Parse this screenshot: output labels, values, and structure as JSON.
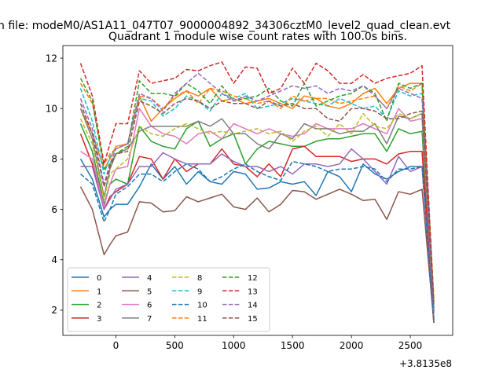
{
  "figure": {
    "suptitle": "n file: modeM0/AS1A11_047T07_9000004892_34306cztM0_level2_quad_clean.evt"
  },
  "chart_data": {
    "type": "line",
    "title": "Quadrant 1 module wise count rates with 100.0s bins.",
    "xlabel": "",
    "ylabel": "",
    "x_offset_label": "+3.8135e8",
    "xlim": [
      -450,
      2860
    ],
    "ylim": [
      1.0,
      12.5
    ],
    "xticks": [
      0,
      500,
      1000,
      1500,
      2000,
      2500
    ],
    "yticks": [
      2,
      4,
      6,
      8,
      10,
      12
    ],
    "grid": false,
    "legend": {
      "placement": "lower left",
      "columns": 4
    },
    "x": [
      -300,
      -200,
      -100,
      -50,
      0,
      100,
      200,
      300,
      400,
      500,
      600,
      700,
      800,
      900,
      1000,
      1100,
      1200,
      1300,
      1400,
      1500,
      1600,
      1700,
      1800,
      1900,
      2000,
      2100,
      2200,
      2300,
      2400,
      2500,
      2600,
      2700
    ],
    "series": [
      {
        "name": "0",
        "color": "#1f77b4",
        "dash": false,
        "values": [
          8.0,
          7.2,
          5.7,
          6.0,
          6.2,
          6.2,
          6.9,
          7.8,
          7.2,
          7.7,
          7.0,
          7.5,
          7.1,
          7.0,
          7.5,
          7.4,
          6.8,
          6.85,
          7.1,
          7.0,
          7.1,
          6.55,
          7.5,
          7.3,
          6.7,
          7.8,
          7.4,
          7.2,
          7.5,
          7.7,
          7.7,
          1.5
        ]
      },
      {
        "name": "1",
        "color": "#ff7f0e",
        "dash": false,
        "values": [
          10.0,
          9.0,
          7.6,
          8.0,
          8.5,
          8.6,
          10.5,
          9.5,
          10.0,
          10.4,
          10.7,
          10.5,
          10.8,
          10.3,
          10.4,
          10.2,
          10.3,
          10.4,
          10.2,
          10.0,
          10.5,
          10.4,
          10.1,
          10.0,
          10.2,
          10.6,
          10.8,
          10.2,
          10.8,
          11.0,
          11.0,
          2.0
        ]
      },
      {
        "name": "2",
        "color": "#2ca02c",
        "dash": false,
        "values": [
          9.4,
          8.3,
          6.2,
          7.0,
          7.2,
          7.0,
          9.3,
          8.7,
          8.5,
          8.4,
          9.2,
          9.5,
          8.5,
          8.8,
          9.0,
          7.8,
          8.4,
          8.7,
          8.6,
          8.5,
          8.5,
          8.7,
          8.8,
          8.8,
          8.9,
          9.0,
          9.0,
          8.3,
          9.2,
          9.0,
          9.1,
          1.6
        ]
      },
      {
        "name": "3",
        "color": "#d62728",
        "dash": false,
        "values": [
          9.0,
          7.8,
          6.0,
          6.5,
          6.7,
          7.0,
          8.1,
          8.0,
          7.2,
          8.0,
          7.5,
          7.8,
          7.8,
          8.4,
          7.8,
          7.7,
          7.3,
          7.8,
          7.3,
          8.4,
          8.5,
          8.1,
          8.1,
          8.1,
          7.9,
          8.0,
          8.0,
          7.8,
          8.2,
          8.3,
          8.3,
          1.7
        ]
      },
      {
        "name": "4",
        "color": "#9467bd",
        "dash": false,
        "values": [
          7.7,
          7.7,
          6.0,
          6.4,
          6.8,
          7.0,
          7.7,
          7.7,
          8.25,
          8.0,
          7.8,
          7.8,
          7.8,
          8.2,
          7.9,
          7.7,
          7.7,
          7.5,
          7.7,
          7.4,
          7.8,
          7.8,
          7.7,
          7.8,
          8.4,
          8.0,
          7.5,
          7.0,
          8.1,
          7.5,
          7.7,
          1.5
        ]
      },
      {
        "name": "5",
        "color": "#8c564b",
        "dash": false,
        "values": [
          6.9,
          6.0,
          4.2,
          4.6,
          4.95,
          5.1,
          6.3,
          6.25,
          5.9,
          5.95,
          6.5,
          6.3,
          6.45,
          6.6,
          6.1,
          6.0,
          6.45,
          5.9,
          6.2,
          6.75,
          6.7,
          6.4,
          6.6,
          6.8,
          6.6,
          6.35,
          6.4,
          5.6,
          6.7,
          6.6,
          6.8,
          1.5
        ]
      },
      {
        "name": "6",
        "color": "#e377c2",
        "dash": false,
        "values": [
          8.3,
          8.0,
          6.1,
          7.0,
          7.6,
          7.7,
          10.0,
          9.3,
          9.0,
          8.9,
          8.6,
          9.0,
          9.1,
          8.8,
          9.4,
          9.2,
          9.0,
          9.2,
          9.0,
          8.9,
          9.0,
          9.4,
          9.2,
          9.2,
          9.2,
          9.4,
          9.2,
          9.0,
          10.0,
          9.5,
          9.6,
          1.8
        ]
      },
      {
        "name": "7",
        "color": "#7f7f7f",
        "dash": false,
        "values": [
          10.0,
          8.8,
          6.5,
          7.6,
          8.2,
          8.4,
          9.1,
          9.3,
          9.3,
          9.3,
          9.3,
          9.5,
          9.3,
          9.6,
          9.0,
          9.0,
          8.6,
          8.4,
          9.0,
          8.8,
          9.4,
          9.2,
          9.2,
          9.0,
          9.1,
          9.1,
          9.4,
          8.6,
          9.7,
          9.6,
          9.8,
          1.9
        ]
      },
      {
        "name": "8",
        "color": "#bcbd22",
        "dash": true,
        "values": [
          9.6,
          8.6,
          6.4,
          7.4,
          7.6,
          8.0,
          9.3,
          9.0,
          8.9,
          9.2,
          9.4,
          9.2,
          9.0,
          9.1,
          9.0,
          9.1,
          9.2,
          9.0,
          9.1,
          8.7,
          9.1,
          9.3,
          8.9,
          9.4,
          9.0,
          9.8,
          9.3,
          9.2,
          9.8,
          9.6,
          9.8,
          2.0
        ]
      },
      {
        "name": "9",
        "color": "#17becf",
        "dash": true,
        "values": [
          10.8,
          9.5,
          7.4,
          8.1,
          8.4,
          8.6,
          10.4,
          10.3,
          9.7,
          10.0,
          10.5,
          10.3,
          9.9,
          10.6,
          10.4,
          10.6,
          10.0,
          10.1,
          10.2,
          10.4,
          10.3,
          10.2,
          10.1,
          10.4,
          10.2,
          10.0,
          10.1,
          9.6,
          10.7,
          10.5,
          10.6,
          2.0
        ]
      },
      {
        "name": "10",
        "color": "#1f77b4",
        "dash": true,
        "values": [
          7.4,
          7.0,
          5.5,
          6.0,
          6.6,
          6.9,
          7.4,
          7.4,
          7.1,
          7.5,
          7.8,
          7.6,
          7.1,
          7.3,
          7.6,
          7.8,
          7.5,
          7.3,
          7.15,
          7.9,
          7.8,
          7.7,
          7.5,
          7.6,
          7.6,
          7.7,
          7.6,
          7.1,
          7.6,
          7.6,
          7.7,
          1.6
        ]
      },
      {
        "name": "11",
        "color": "#ff7f0e",
        "dash": true,
        "values": [
          11.0,
          10.2,
          7.8,
          8.2,
          8.4,
          8.6,
          10.5,
          10.4,
          10.0,
          10.5,
          10.7,
          10.2,
          10.8,
          10.7,
          10.5,
          10.4,
          10.2,
          10.3,
          10.0,
          10.5,
          10.3,
          10.4,
          10.4,
          10.2,
          10.3,
          10.4,
          10.5,
          10.0,
          10.9,
          10.7,
          11.0,
          2.5
        ]
      },
      {
        "name": "12",
        "color": "#2ca02c",
        "dash": true,
        "values": [
          11.2,
          10.3,
          7.6,
          7.8,
          8.2,
          8.5,
          11.1,
          10.6,
          10.6,
          10.5,
          11.0,
          10.7,
          10.2,
          10.9,
          10.3,
          10.4,
          10.5,
          10.8,
          10.3,
          10.1,
          11.0,
          10.1,
          10.3,
          10.5,
          10.6,
          10.9,
          10.6,
          9.5,
          11.0,
          10.8,
          11.0,
          2.3
        ]
      },
      {
        "name": "13",
        "color": "#d62728",
        "dash": true,
        "values": [
          11.8,
          10.5,
          7.8,
          8.6,
          9.4,
          9.4,
          11.5,
          11.0,
          11.1,
          11.2,
          11.55,
          11.5,
          11.7,
          11.85,
          11.0,
          11.65,
          11.6,
          10.6,
          10.8,
          11.6,
          11.0,
          11.8,
          11.5,
          11.0,
          11.0,
          11.35,
          11.0,
          11.2,
          11.3,
          11.4,
          11.7,
          2.2
        ]
      },
      {
        "name": "14",
        "color": "#9467bd",
        "dash": true,
        "values": [
          10.4,
          9.2,
          7.0,
          7.8,
          8.4,
          8.6,
          10.6,
          10.4,
          9.9,
          10.6,
          11.0,
          11.4,
          11.0,
          10.6,
          10.3,
          10.5,
          10.3,
          10.5,
          10.7,
          10.9,
          10.8,
          10.9,
          10.6,
          10.8,
          10.7,
          10.9,
          10.5,
          10.0,
          10.8,
          10.6,
          10.4,
          2.0
        ]
      },
      {
        "name": "15",
        "color": "#8c564b",
        "dash": true,
        "values": [
          10.2,
          9.0,
          6.9,
          7.7,
          8.2,
          8.3,
          10.3,
          10.1,
          9.8,
          10.2,
          10.4,
          10.3,
          10.0,
          10.3,
          10.2,
          10.2,
          10.0,
          10.3,
          10.1,
          10.2,
          10.0,
          10.0,
          9.6,
          9.5,
          10.0,
          10.0,
          9.9,
          9.6,
          9.6,
          9.8,
          9.9,
          2.1
        ]
      }
    ]
  }
}
